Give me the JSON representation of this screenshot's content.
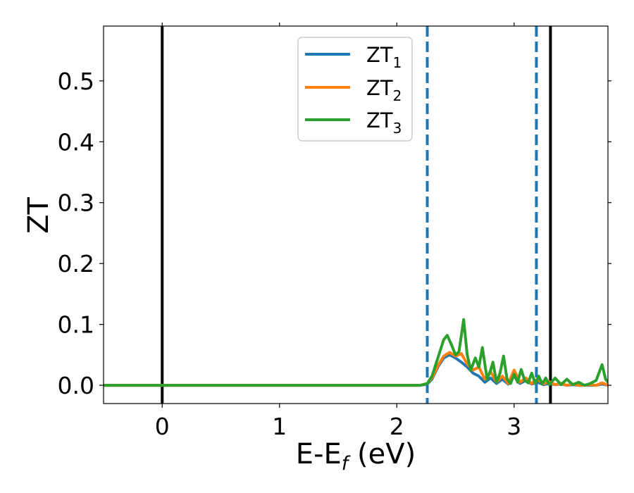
{
  "chart_data": {
    "type": "line",
    "title": "",
    "xlabel": "E-E",
    "xlabel_sub": "f",
    "xlabel_unit": " (eV)",
    "ylabel": "ZT",
    "xlim": [
      -0.5,
      3.8
    ],
    "ylim": [
      -0.03,
      0.59
    ],
    "xticks": [
      0,
      1,
      2,
      3
    ],
    "yticks": [
      0.0,
      0.1,
      0.2,
      0.3,
      0.4,
      0.5
    ],
    "ytick_labels": [
      "0.0",
      "0.1",
      "0.2",
      "0.3",
      "0.4",
      "0.5"
    ],
    "grid": false,
    "legend_position": "upper-center",
    "vertical_lines": [
      {
        "x": 0.0,
        "style": "solid",
        "color": "#000000"
      },
      {
        "x": 3.31,
        "style": "solid",
        "color": "#000000"
      },
      {
        "x": 2.26,
        "style": "dashed",
        "color": "#1f77b4"
      },
      {
        "x": 3.19,
        "style": "dashed",
        "color": "#1f77b4"
      }
    ],
    "series": [
      {
        "name": "ZT",
        "name_sub": "1",
        "color": "#1f77b4",
        "x": [
          -0.5,
          2.2,
          2.26,
          2.3,
          2.35,
          2.4,
          2.45,
          2.5,
          2.55,
          2.6,
          2.65,
          2.7,
          2.75,
          2.8,
          2.85,
          2.9,
          2.95,
          3.0,
          3.05,
          3.1,
          3.15,
          3.2,
          3.25,
          3.3,
          3.35,
          3.4,
          3.45,
          3.5,
          3.55,
          3.6,
          3.65,
          3.7,
          3.75,
          3.8
        ],
        "y": [
          0.0,
          0.0,
          0.002,
          0.01,
          0.03,
          0.045,
          0.05,
          0.045,
          0.038,
          0.03,
          0.02,
          0.015,
          0.005,
          0.012,
          0.003,
          0.01,
          0.002,
          0.015,
          0.003,
          0.008,
          0.002,
          0.005,
          0.001,
          0.003,
          0.001,
          0.002,
          0.0,
          0.001,
          0.0,
          0.0,
          0.0,
          0.0,
          0.002,
          0.0
        ]
      },
      {
        "name": "ZT",
        "name_sub": "2",
        "color": "#ff7f0e",
        "x": [
          -0.5,
          2.2,
          2.26,
          2.3,
          2.35,
          2.4,
          2.45,
          2.5,
          2.55,
          2.6,
          2.65,
          2.7,
          2.75,
          2.8,
          2.85,
          2.9,
          2.95,
          3.0,
          3.05,
          3.1,
          3.15,
          3.2,
          3.25,
          3.3,
          3.35,
          3.4,
          3.45,
          3.5,
          3.55,
          3.6,
          3.65,
          3.7,
          3.75,
          3.8
        ],
        "y": [
          0.0,
          0.0,
          0.003,
          0.012,
          0.032,
          0.048,
          0.054,
          0.048,
          0.052,
          0.035,
          0.025,
          0.03,
          0.01,
          0.022,
          0.005,
          0.015,
          0.003,
          0.025,
          0.005,
          0.012,
          0.003,
          0.01,
          0.002,
          0.006,
          0.001,
          0.003,
          0.0,
          0.002,
          0.0,
          0.0,
          0.001,
          0.0,
          0.004,
          0.0
        ]
      },
      {
        "name": "ZT",
        "name_sub": "3",
        "color": "#2ca02c",
        "x": [
          -0.5,
          2.2,
          2.26,
          2.3,
          2.35,
          2.4,
          2.43,
          2.47,
          2.5,
          2.53,
          2.57,
          2.6,
          2.63,
          2.67,
          2.7,
          2.73,
          2.77,
          2.8,
          2.82,
          2.85,
          2.88,
          2.91,
          2.94,
          2.97,
          3.0,
          3.03,
          3.06,
          3.09,
          3.12,
          3.15,
          3.18,
          3.21,
          3.24,
          3.27,
          3.3,
          3.35,
          3.4,
          3.45,
          3.5,
          3.55,
          3.6,
          3.65,
          3.7,
          3.75,
          3.78,
          3.8
        ],
        "y": [
          0.0,
          0.0,
          0.003,
          0.015,
          0.045,
          0.075,
          0.082,
          0.065,
          0.05,
          0.055,
          0.108,
          0.05,
          0.025,
          0.045,
          0.03,
          0.062,
          0.01,
          0.025,
          0.038,
          0.005,
          0.02,
          0.048,
          0.01,
          0.003,
          0.018,
          0.005,
          0.026,
          0.008,
          0.004,
          0.02,
          0.003,
          0.015,
          0.002,
          0.012,
          0.001,
          0.012,
          0.001,
          0.01,
          0.001,
          0.005,
          0.0,
          0.003,
          0.008,
          0.034,
          0.01,
          0.005
        ]
      }
    ]
  }
}
